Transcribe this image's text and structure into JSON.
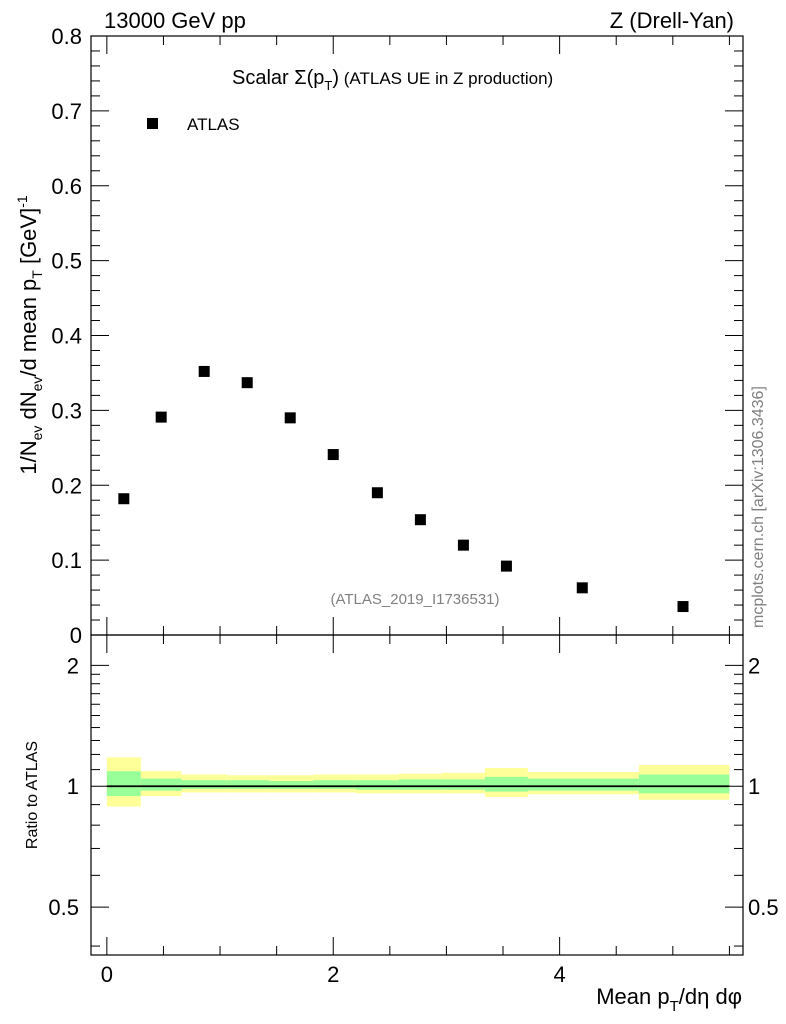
{
  "header": {
    "energy": "13000 GeV pp",
    "process": "Z (Drell-Yan)"
  },
  "side_label": "mcplots.cern.ch [arXiv:1306.3436]",
  "chart_data": [
    {
      "type": "scatter",
      "title": "Scalar Σ(pT) (ATLAS UE in Z production)",
      "title_parts": {
        "prefix": "Scalar ",
        "sigma": "Σ(p",
        "sub": "T",
        "close": ")",
        "suffix": " (ATLAS UE in Z production)"
      },
      "ylabel": "1/Nev dNev/d mean pT [GeV]-1",
      "ylabel_parts": {
        "a": "1/N",
        "ev1": "ev",
        "b": " dN",
        "ev2": "ev",
        "c": "/d mean p",
        "t": "T",
        "d": " [GeV]",
        "e": "-1"
      },
      "xlim": [
        -0.14,
        5.62
      ],
      "ylim": [
        0,
        0.8
      ],
      "y_ticks": [
        "0",
        "0.1",
        "0.2",
        "0.3",
        "0.4",
        "0.5",
        "0.6",
        "0.7",
        "0.8"
      ],
      "legend": {
        "position": "top-left",
        "entries": [
          "ATLAS"
        ]
      },
      "annotation": "(ATLAS_2019_I1736531)",
      "series": [
        {
          "name": "ATLAS",
          "color": "#000000",
          "marker": "square",
          "x": [
            0.15,
            0.48,
            0.86,
            1.24,
            1.62,
            2.0,
            2.39,
            2.77,
            3.15,
            3.53,
            4.2,
            5.09
          ],
          "y": [
            0.182,
            0.291,
            0.352,
            0.337,
            0.29,
            0.241,
            0.19,
            0.154,
            0.12,
            0.092,
            0.063,
            0.038
          ]
        }
      ]
    },
    {
      "type": "area",
      "ylabel": "Ratio to ATLAS",
      "xlabel": "Mean pT/dη dφ",
      "xlabel_parts": {
        "a": "Mean p",
        "t": "T",
        "b": "/dη dφ"
      },
      "xlim": [
        -0.14,
        5.62
      ],
      "ylim": [
        0.38,
        2.38
      ],
      "y_scale": "log",
      "x_ticks": [
        "0",
        "2",
        "4"
      ],
      "y_ticks": [
        "0.5",
        "1",
        "2"
      ],
      "reference_line": 1,
      "bands": {
        "edges": [
          0.0,
          0.3,
          0.66,
          1.06,
          1.44,
          1.82,
          2.2,
          2.58,
          2.96,
          3.34,
          3.72,
          4.7,
          5.5
        ],
        "yellow_color": "#ffff99",
        "green_color": "#99ff99",
        "yellow_low": [
          0.89,
          0.945,
          0.965,
          0.965,
          0.965,
          0.965,
          0.96,
          0.96,
          0.96,
          0.94,
          0.955,
          0.925
        ],
        "yellow_high": [
          1.18,
          1.09,
          1.07,
          1.065,
          1.065,
          1.07,
          1.07,
          1.075,
          1.08,
          1.11,
          1.085,
          1.13
        ],
        "green_low": [
          0.945,
          0.975,
          0.985,
          0.985,
          0.985,
          0.985,
          0.98,
          0.98,
          0.98,
          0.97,
          0.975,
          0.96
        ],
        "green_high": [
          1.09,
          1.045,
          1.035,
          1.035,
          1.03,
          1.035,
          1.035,
          1.04,
          1.04,
          1.055,
          1.045,
          1.07
        ]
      }
    }
  ]
}
